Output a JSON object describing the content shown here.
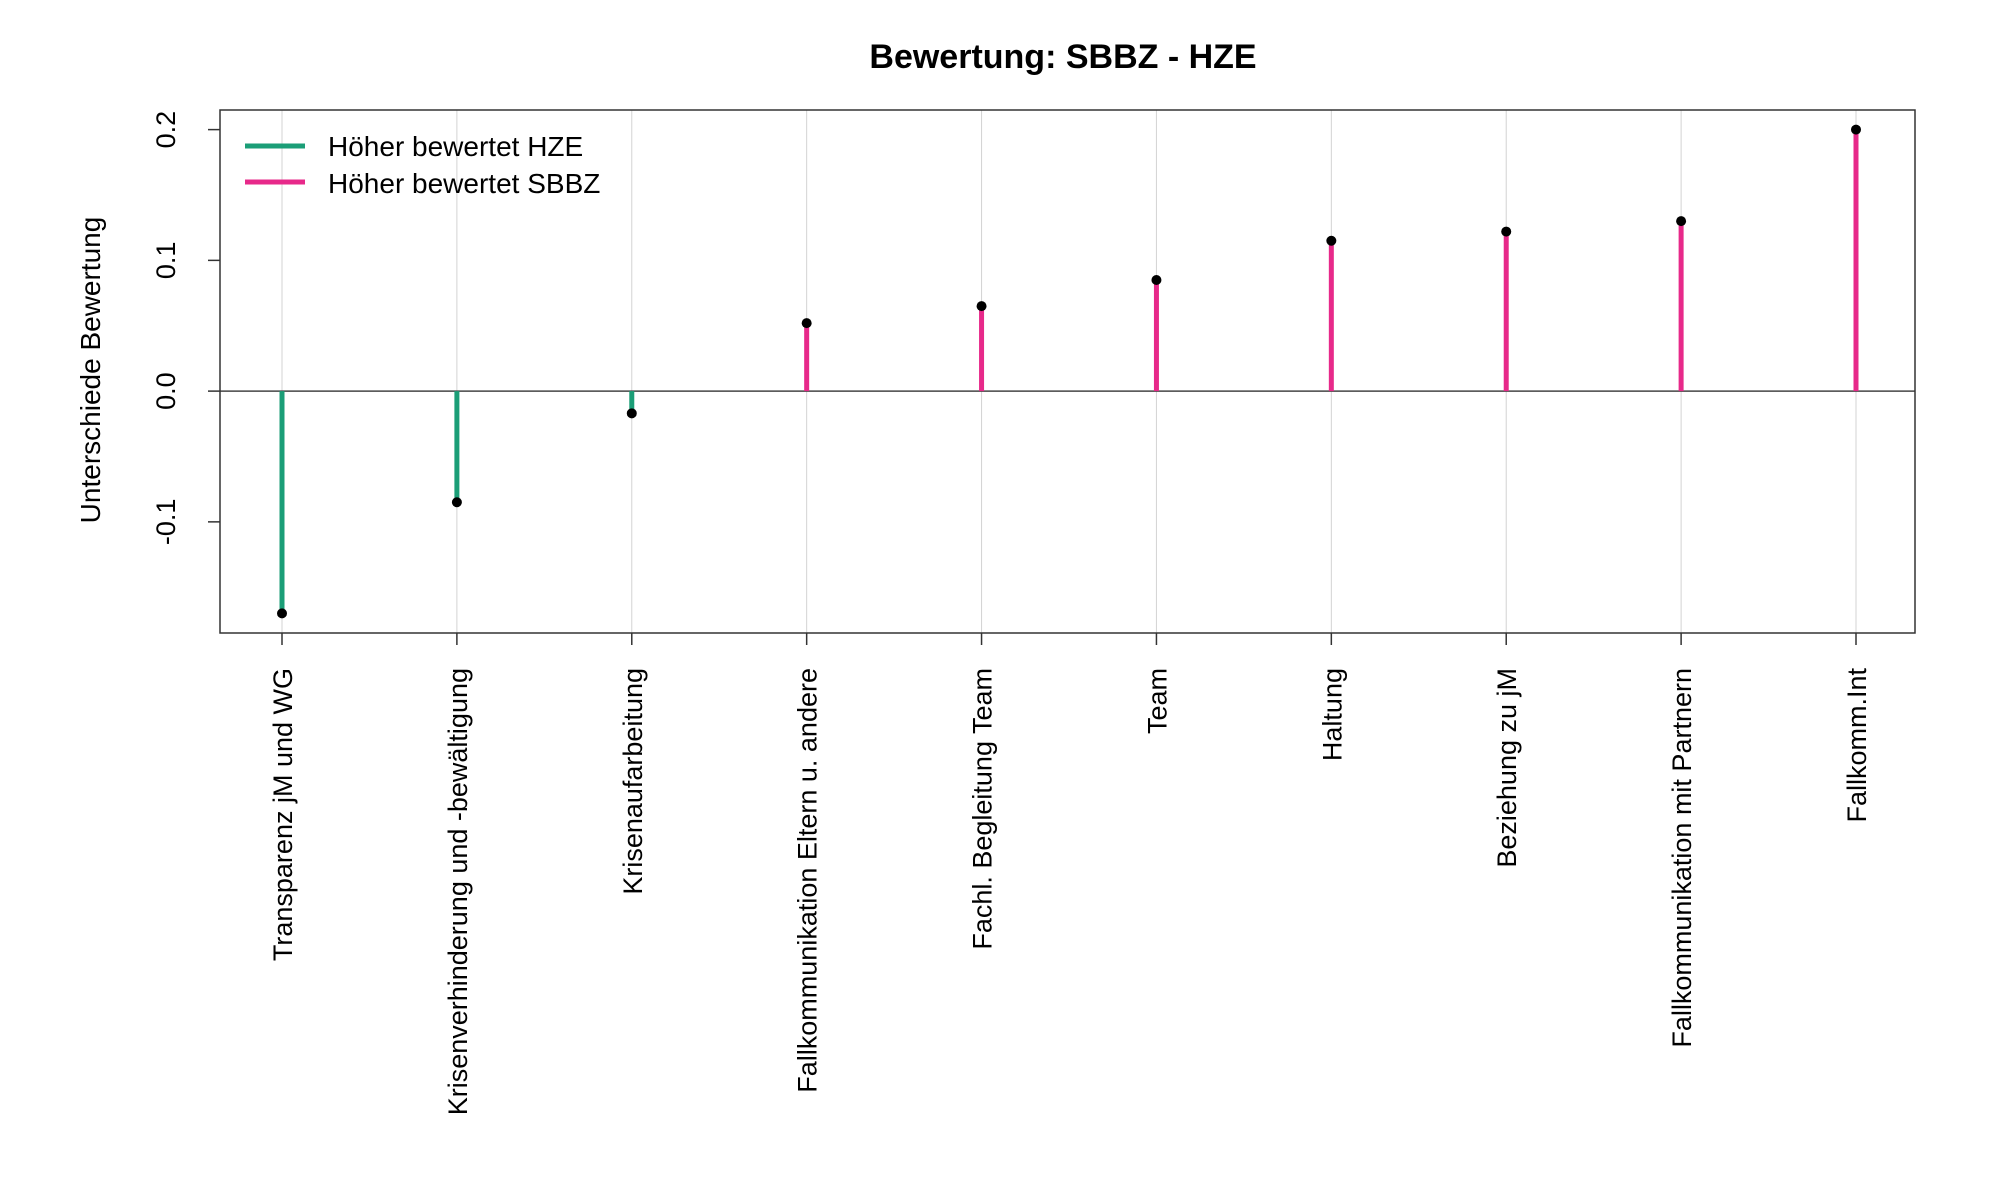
{
  "chart_data": {
    "type": "lollipop",
    "title": "Bewertung: SBBZ - HZE",
    "ylabel": "Unterschiede Bewertung",
    "xlabel": "",
    "ylim": [
      -0.185,
      0.215
    ],
    "yticks": [
      -0.1,
      0.0,
      0.1,
      0.2
    ],
    "ytick_labels": [
      "-0.1",
      "0.0",
      "0.1",
      "0.2"
    ],
    "baseline": 0,
    "grid": "vertical-guides",
    "legend_position": "top-left",
    "legend": [
      {
        "label": "Höher bewertet HZE",
        "color": "#1b9e77"
      },
      {
        "label": "Höher bewertet SBBZ",
        "color": "#e7298a"
      }
    ],
    "colors": {
      "negative": "#1b9e77",
      "positive": "#e7298a",
      "point": "#000000",
      "guide": "#d3d3d3"
    },
    "categories": [
      "Transparenz jM und WG",
      "Krisenverhinderung und -bewältigung",
      "Krisenaufarbeitung",
      "Fallkommunikation Eltern u. andere",
      "Fachl. Begleitung Team",
      "Team",
      "Haltung",
      "Beziehung zu jM",
      "Fallkommunikation mit Partnern",
      "Fallkomm.Int"
    ],
    "values": [
      -0.17,
      -0.085,
      -0.017,
      0.052,
      0.065,
      0.085,
      0.115,
      0.122,
      0.13,
      0.2
    ]
  }
}
